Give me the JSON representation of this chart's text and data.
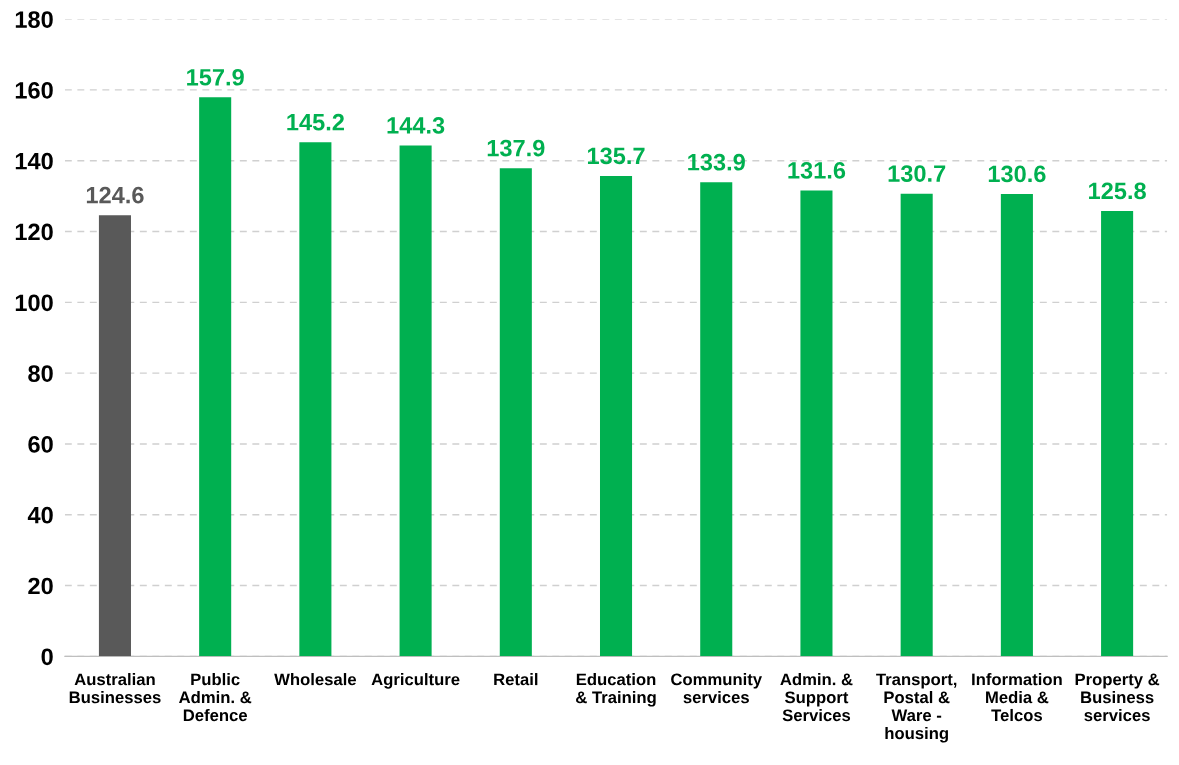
{
  "chart_data": {
    "type": "bar",
    "categories": [
      "Australian\nBusinesses",
      "Public\nAdmin. &\nDefence",
      "Wholesale",
      "Agriculture",
      "Retail",
      "Education\n& Training",
      "Community\nservices",
      "Admin. &\nSupport\nServices",
      "Transport,\nPostal &\nWare -\nhousing",
      "Information\nMedia &\nTelcos",
      "Property &\nBusiness\nservices"
    ],
    "values": [
      124.6,
      157.9,
      145.2,
      144.3,
      137.9,
      135.7,
      133.9,
      131.6,
      130.7,
      130.6,
      125.8
    ],
    "colors": [
      "#595959",
      "#00b050",
      "#00b050",
      "#00b050",
      "#00b050",
      "#00b050",
      "#00b050",
      "#00b050",
      "#00b050",
      "#00b050",
      "#00b050"
    ],
    "ylim": [
      0,
      180
    ],
    "yticks": [
      0,
      20,
      40,
      60,
      80,
      100,
      120,
      140,
      160,
      180
    ],
    "grid": "y",
    "data_labels": true
  }
}
